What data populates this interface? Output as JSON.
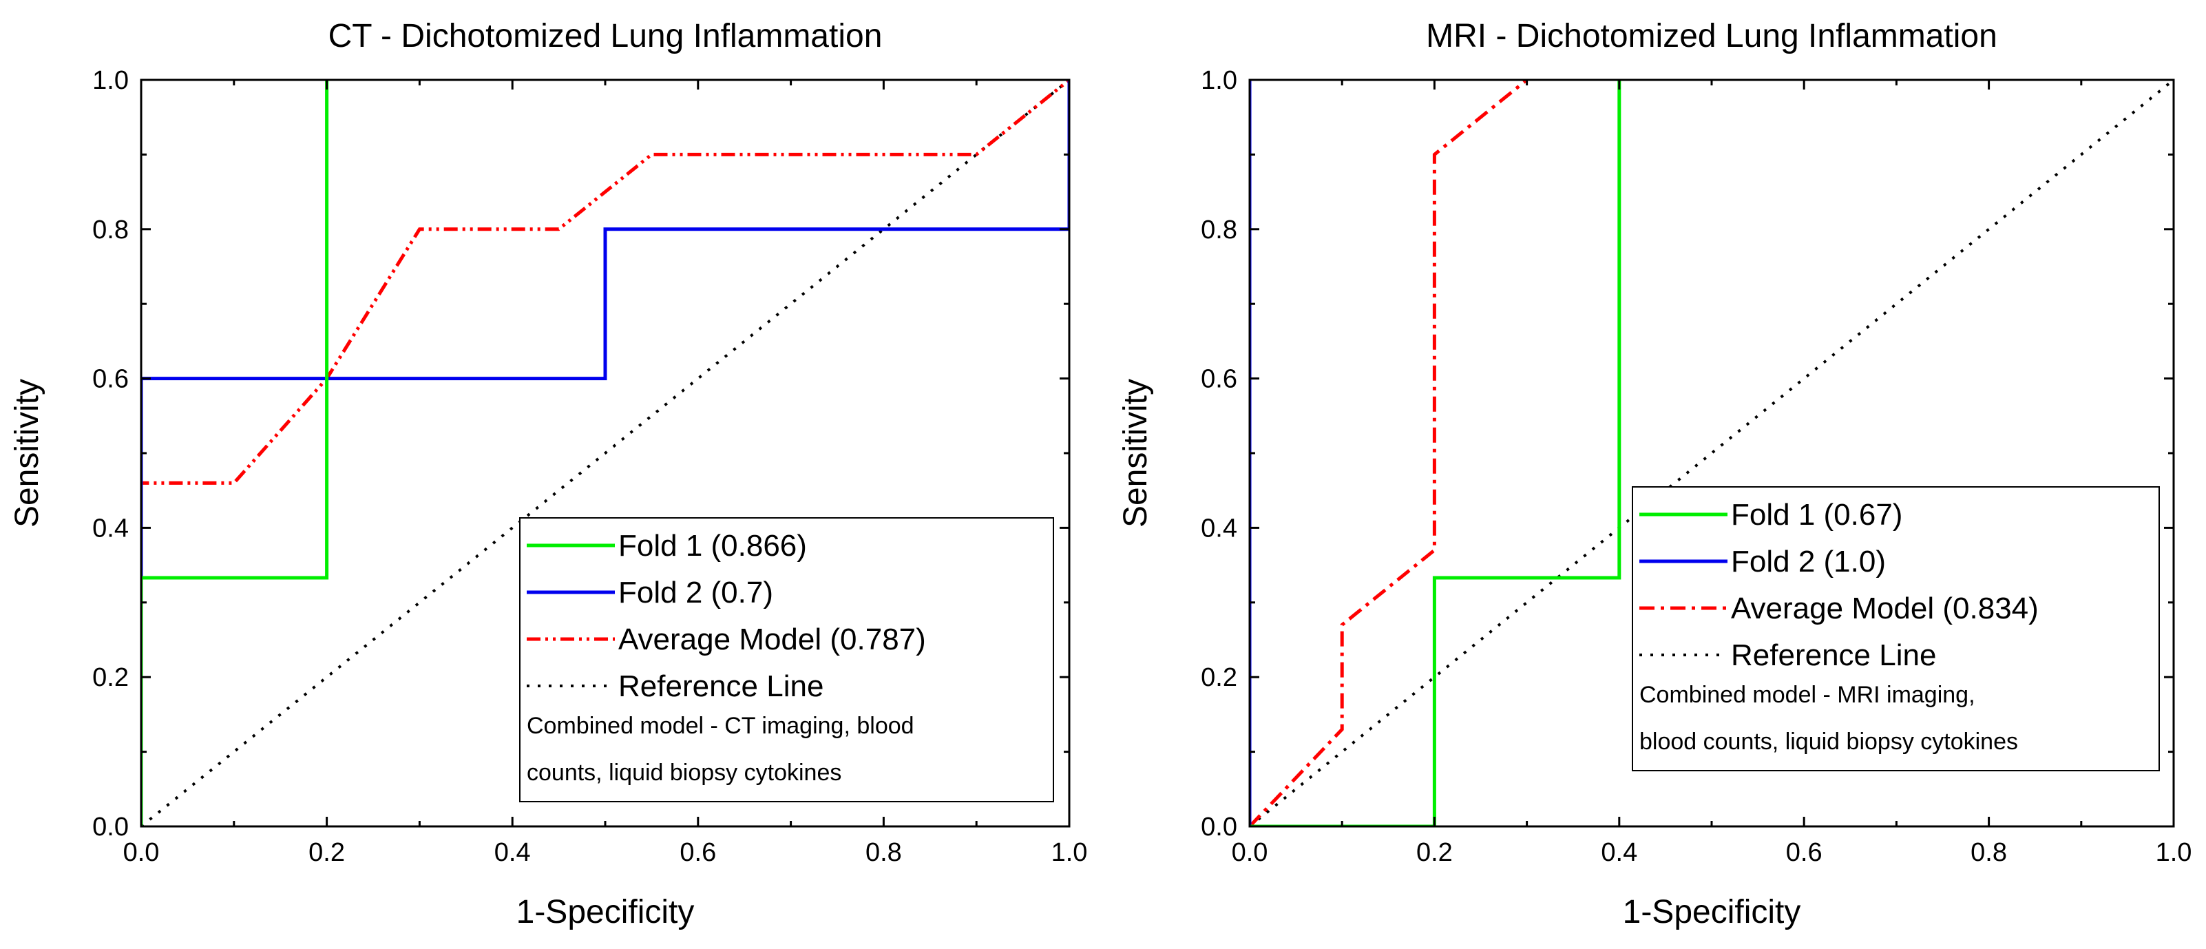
{
  "chart_data": [
    {
      "type": "line",
      "title": "CT - Dichotomized Lung Inflammation",
      "xlabel": "1-Specificity",
      "ylabel": "Sensitivity",
      "xlim": [
        0,
        1
      ],
      "ylim": [
        0,
        1
      ],
      "xticks": [
        "0.0",
        "0.2",
        "0.4",
        "0.6",
        "0.8",
        "1.0"
      ],
      "yticks": [
        "0.0",
        "0.2",
        "0.4",
        "0.6",
        "0.8",
        "1.0"
      ],
      "legend_position": "bottom-right",
      "note": [
        "Combined model - CT imaging, blood",
        "counts, liquid biopsy cytokines"
      ],
      "series": [
        {
          "name": "Fold 1 (0.866)",
          "color": "#00ee00",
          "dash": "solid",
          "x": [
            0,
            0,
            0.2,
            0.2
          ],
          "y": [
            0,
            0.333,
            0.333,
            1.0
          ]
        },
        {
          "name": "Fold 2 (0.7)",
          "color": "#0000ee",
          "dash": "solid",
          "x": [
            0,
            0,
            0.5,
            0.5,
            1.0,
            1.0
          ],
          "y": [
            0,
            0.6,
            0.6,
            0.8,
            0.8,
            1.0
          ]
        },
        {
          "name": "Average Model (0.787)",
          "color": "#ff0000",
          "dash": "dashdotdot",
          "x": [
            0,
            0,
            0.1,
            0.2,
            0.3,
            0.45,
            0.55,
            0.9,
            1.0
          ],
          "y": [
            0,
            0.46,
            0.46,
            0.6,
            0.8,
            0.8,
            0.9,
            0.9,
            1.0
          ]
        },
        {
          "name": "Reference Line",
          "color": "#000000",
          "dash": "dot",
          "x": [
            0,
            1
          ],
          "y": [
            0,
            1
          ]
        }
      ]
    },
    {
      "type": "line",
      "title": "MRI - Dichotomized Lung Inflammation",
      "xlabel": "1-Specificity",
      "ylabel": "Sensitivity",
      "xlim": [
        0,
        1
      ],
      "ylim": [
        0,
        1
      ],
      "xticks": [
        "0.0",
        "0.2",
        "0.4",
        "0.6",
        "0.8",
        "1.0"
      ],
      "yticks": [
        "0.0",
        "0.2",
        "0.4",
        "0.6",
        "0.8",
        "1.0"
      ],
      "legend_position": "center-right",
      "note": [
        "Combined model - MRI imaging,",
        "blood counts, liquid biopsy cytokines"
      ],
      "series": [
        {
          "name": "Fold 1 (0.67)",
          "color": "#00ee00",
          "dash": "solid",
          "x": [
            0,
            0.2,
            0.2,
            0.4,
            0.4
          ],
          "y": [
            0,
            0,
            0.333,
            0.333,
            1.0
          ]
        },
        {
          "name": "Fold 2 (1.0)",
          "color": "#0000ee",
          "dash": "solid",
          "x": [
            0,
            0
          ],
          "y": [
            0,
            1.0
          ]
        },
        {
          "name": "Average Model (0.834)",
          "color": "#ff0000",
          "dash": "dashdot",
          "x": [
            0,
            0.1,
            0.1,
            0.2,
            0.2,
            0.3
          ],
          "y": [
            0,
            0.13,
            0.27,
            0.37,
            0.9,
            1.0
          ]
        },
        {
          "name": "Reference Line",
          "color": "#000000",
          "dash": "dot",
          "x": [
            0,
            1
          ],
          "y": [
            0,
            1
          ]
        }
      ]
    }
  ]
}
